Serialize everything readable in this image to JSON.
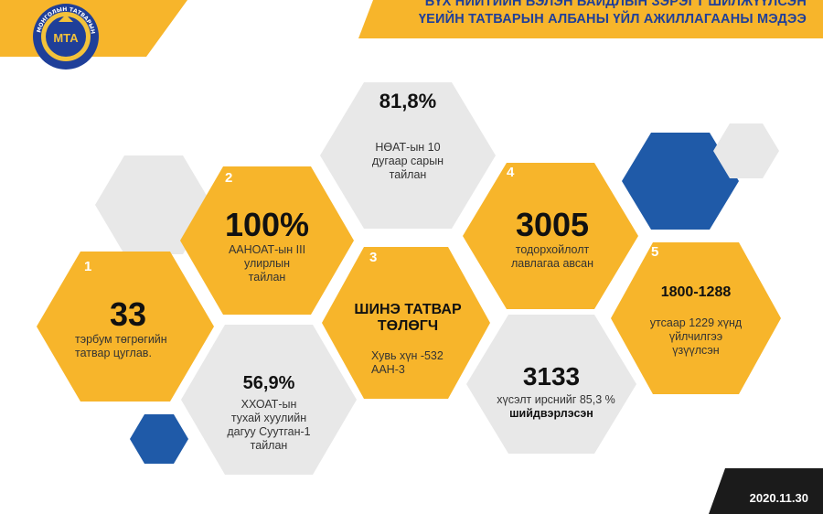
{
  "header": {
    "title_line1": "БҮХ НИЙТИЙН БЭЛЭН БАЙДЛЫН ЗЭРЭГТ ШИЛЖҮҮЛСЭН",
    "title_line2": "ҮЕИЙН ТАТВАРЫН АЛБАНЫ ҮЙЛ АЖИЛЛАГААНЫ МЭДЭЭ",
    "accent_color": "#f7b52b",
    "title_color": "#1f3f99"
  },
  "logo": {
    "text": "МОНГОЛЫН ТАТВАРЫН АЛБА",
    "monogram": "МТА"
  },
  "cells": {
    "c81": {
      "value": "81,8%",
      "label": "НӨАТ-ын 10 дугаар сарын тайлан"
    },
    "c100": {
      "index": "2",
      "value": "100%",
      "label": "ААНОАТ-ын III улирлын тайлан"
    },
    "c3005": {
      "index": "4",
      "value": "3005",
      "label": "тодорхойлолт лавлагаа авсан"
    },
    "c33": {
      "index": "1",
      "value": "33",
      "label": "тэрбум төгрөгийн татвар цуглав."
    },
    "shine": {
      "index": "3",
      "value": "ШИНЭ ТАТВАР ТӨЛӨГЧ",
      "label": "Хувь хүн -532 ААН-3"
    },
    "c1800": {
      "index": "5",
      "value": "1800-1288",
      "label": "утсаар 1229 хүнд үйлчилгээ үзүүлсэн"
    },
    "c569": {
      "value": "56,9%",
      "label": "ХХОАТ-ын тухай хуулийн дагуу Суутган-1 тайлан"
    },
    "c3133": {
      "value": "3133",
      "label": "хүсэлт ирснийг 85,3 %",
      "label2": "шийдвэрлэсэн"
    }
  },
  "colors": {
    "yellow": "#f7b52b",
    "gray": "#e8e8e8",
    "blue": "#1f5aa8",
    "dark": "#1b1b1b"
  },
  "date": "2020.11.30"
}
